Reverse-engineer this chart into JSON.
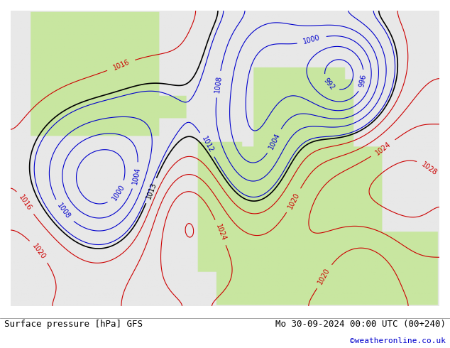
{
  "title_left": "Surface pressure [hPa] GFS",
  "title_right": "Mo 30-09-2024 00:00 UTC (00+240)",
  "credit": "©weatheronline.co.uk",
  "bg_ocean": "#e8e8e8",
  "bg_land_europe": "#c8e6a0",
  "bg_land_greenland": "#c8e6a0",
  "contour_low_color": "#0000cc",
  "contour_high_color": "#cc0000",
  "contour_1013_color": "#000000",
  "label_fontsize": 7,
  "footer_fontsize": 9,
  "credit_fontsize": 8,
  "credit_color": "#0000cc"
}
